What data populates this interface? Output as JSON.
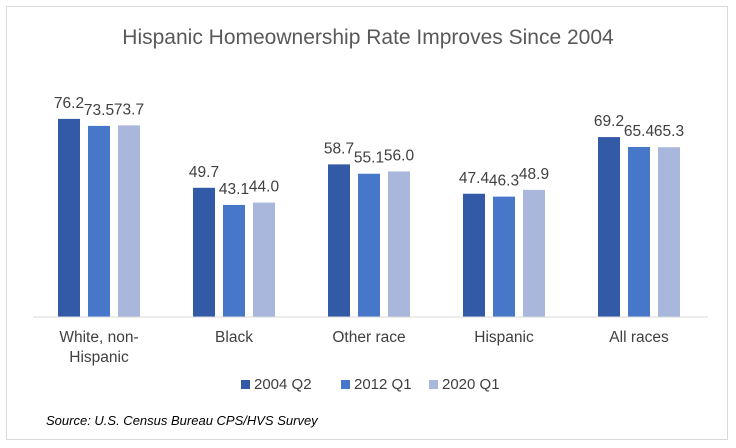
{
  "chart_data": {
    "type": "bar",
    "title": "Hispanic Homeownership Rate Improves Since 2004",
    "categories": [
      "White, non-Hispanic",
      "Black",
      "Other race",
      "Hispanic",
      "All races"
    ],
    "category_lines": [
      [
        "White, non-",
        "Hispanic"
      ],
      [
        "Black"
      ],
      [
        "Other race"
      ],
      [
        "Hispanic"
      ],
      [
        "All races"
      ]
    ],
    "series": [
      {
        "name": "2004 Q2",
        "color": "#335aa6",
        "values": [
          76.2,
          49.7,
          58.7,
          47.4,
          69.2
        ]
      },
      {
        "name": "2012 Q1",
        "color": "#4677c8",
        "values": [
          73.5,
          43.1,
          55.1,
          46.3,
          65.4
        ]
      },
      {
        "name": "2020 Q1",
        "color": "#a9b7dd",
        "values": [
          73.7,
          44.0,
          56.0,
          48.9,
          65.3
        ]
      }
    ],
    "xlabel": "",
    "ylabel": "",
    "ylim": [
      0,
      100
    ],
    "grid": false,
    "legend": "bottom",
    "source": "Source: U.S. Census Bureau CPS/HVS Survey"
  }
}
